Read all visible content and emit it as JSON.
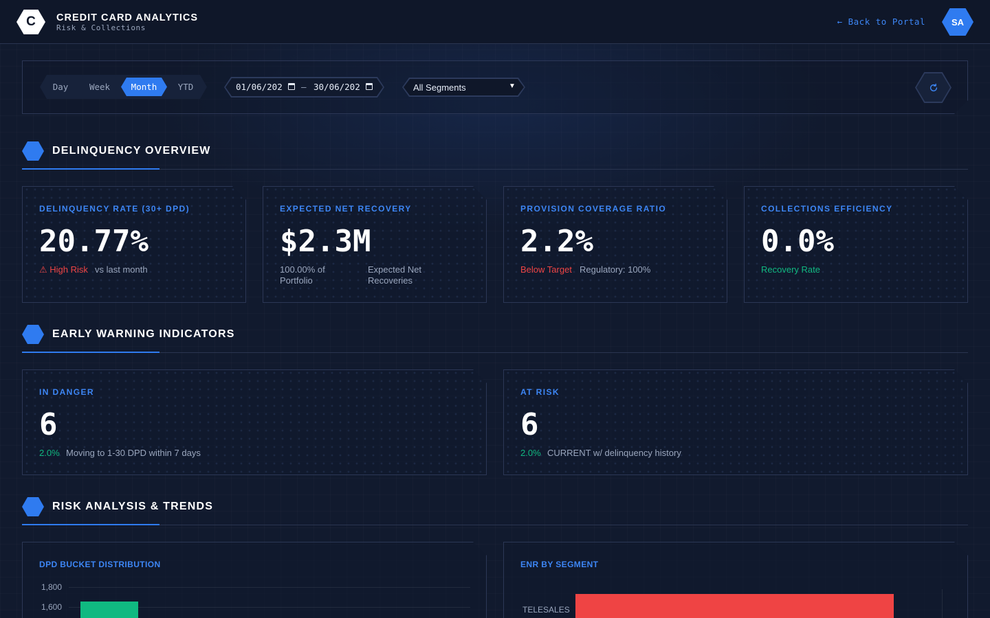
{
  "header": {
    "logo_letter": "C",
    "title": "CREDIT CARD ANALYTICS",
    "subtitle": "Risk & Collections",
    "back_link": "← Back to Portal",
    "avatar_initials": "SA"
  },
  "filters": {
    "periods": [
      {
        "label": "Day",
        "active": false
      },
      {
        "label": "Week",
        "active": false
      },
      {
        "label": "Month",
        "active": true
      },
      {
        "label": "YTD",
        "active": false
      }
    ],
    "date_from": "01/06/202",
    "date_separator": "–",
    "date_to": "30/06/202",
    "segment": "All Segments",
    "refresh_icon": "refresh-icon"
  },
  "sections": {
    "delinquency": "DELINQUENCY OVERVIEW",
    "early_warning": "EARLY WARNING INDICATORS",
    "risk": "RISK ANALYSIS & TRENDS"
  },
  "kpis": [
    {
      "label": "DELINQUENCY RATE (30+ DPD)",
      "value": "20.77%",
      "status": "⚠ High Risk",
      "status_color": "#ef4444",
      "note": "vs last month"
    },
    {
      "label": "EXPECTED NET RECOVERY",
      "value": "$2.3M",
      "note_a": "100.00% of Portfolio",
      "note_b": "Expected Net Recoveries"
    },
    {
      "label": "PROVISION COVERAGE RATIO",
      "value": "2.2%",
      "status": "Below Target",
      "status_color": "#ef4444",
      "note": "Regulatory: 100%"
    },
    {
      "label": "COLLECTIONS EFFICIENCY",
      "value": "0.0%",
      "status": "Recovery Rate",
      "status_color": "#10b981"
    }
  ],
  "warnings": [
    {
      "label": "IN DANGER",
      "value": "6",
      "pct": "2.0%",
      "note": "Moving to 1-30 DPD within 7 days"
    },
    {
      "label": "AT RISK",
      "value": "6",
      "pct": "2.0%",
      "note": "CURRENT w/ delinquency history"
    }
  ],
  "chart_data": [
    {
      "type": "bar",
      "title": "DPD BUCKET DISTRIBUTION",
      "y_ticks": [
        "1,800",
        "1,600"
      ],
      "ylim": [
        1600,
        1800
      ],
      "visible_bar_color": "#10b981"
    },
    {
      "type": "bar",
      "orientation": "horizontal",
      "title": "ENR BY SEGMENT",
      "categories": [
        "TELESALES"
      ],
      "bar_color": "#ef4444"
    }
  ]
}
